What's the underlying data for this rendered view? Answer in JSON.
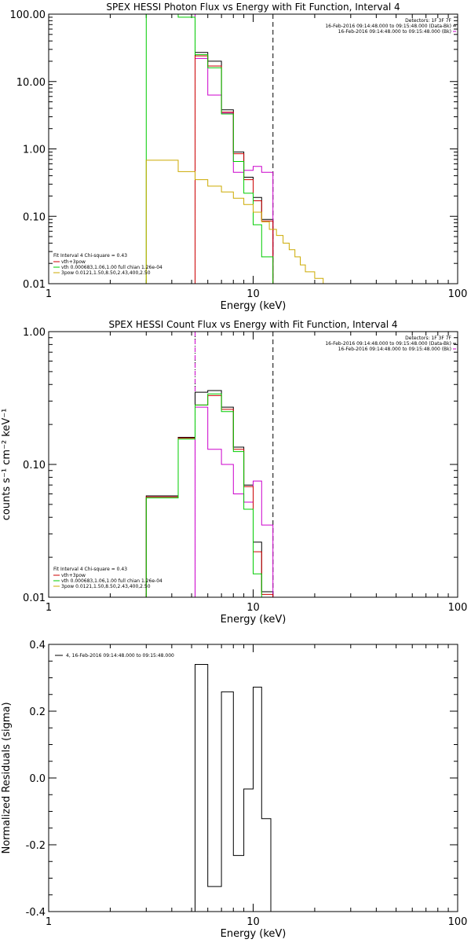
{
  "chart_data": [
    {
      "type": "line",
      "id": "photon",
      "title": "SPEX HESSI Photon Flux vs Energy with Fit Function, Interval 4",
      "xlabel": "Energy (keV)",
      "ylabel": "",
      "xscale": "log",
      "yscale": "log",
      "xlim": [
        1,
        100
      ],
      "ylim": [
        0.01,
        100
      ],
      "xticks": [
        {
          "v": 1,
          "label": "1"
        },
        {
          "v": 10,
          "label": "10"
        },
        {
          "v": 100,
          "label": "100"
        }
      ],
      "yticks": [
        {
          "v": 0.01,
          "label": "0.01"
        },
        {
          "v": 0.1,
          "label": "0.10"
        },
        {
          "v": 1,
          "label": "1.00"
        },
        {
          "v": 10,
          "label": "10.00"
        },
        {
          "v": 100,
          "label": "100.00"
        }
      ],
      "info_lines": [
        "Detectors: 1F 3F 7F",
        "16-Feb-2016 09:14:48.000 to 09:15:48.000 (Data-Bk)",
        "16-Feb-2016 09:14:48.000 to 09:15:48.000 (Bk)"
      ],
      "vlines": [
        {
          "x": 5.2,
          "style": "dotted",
          "color": "#000000"
        },
        {
          "x": 5.2,
          "style": "dashed",
          "color": "#cc00cc"
        },
        {
          "x": 12.5,
          "style": "dashed",
          "color": "#000000"
        }
      ],
      "legend": {
        "placement": "bottom-left",
        "header": "Fit Interval 4   Chi-square = 0.43",
        "entries": [
          {
            "label": "vth+3pow",
            "color": "#cc0000"
          },
          {
            "label": "vth 0.000683,1.06,1.00  full chian 1.26e-04",
            "color": "#00cc00"
          },
          {
            "label": "3pow 0.0121,1.50,8.50,2.43,400,2.50",
            "color": "#ccaa00"
          }
        ]
      },
      "series": [
        {
          "name": "Data-Bk",
          "color": "#000000",
          "edges": [
            5.2,
            6,
            7,
            8,
            9,
            10,
            11,
            12.5
          ],
          "values": [
            27,
            20,
            3.8,
            0.9,
            0.38,
            0.19,
            0.09
          ]
        },
        {
          "name": "Bk",
          "color": "#cc00cc",
          "edges": [
            5.2,
            6,
            7,
            8,
            9,
            10,
            11,
            12.5
          ],
          "values": [
            22,
            6.3,
            3.4,
            0.45,
            0.48,
            0.55,
            0.45
          ]
        },
        {
          "name": "vth+3pow",
          "color": "#cc0000",
          "edges": [
            5.2,
            6,
            7,
            8,
            9,
            10,
            11,
            12.5
          ],
          "values": [
            24,
            17,
            3.5,
            0.85,
            0.35,
            0.17,
            0.085
          ]
        },
        {
          "name": "vth",
          "color": "#00cc00",
          "edges": [
            3,
            4.3,
            5.2,
            6,
            7,
            8,
            9,
            10,
            11,
            12.5
          ],
          "values": [
            100,
            90,
            25,
            16,
            3.3,
            0.65,
            0.22,
            0.075,
            0.025
          ]
        },
        {
          "name": "3pow",
          "color": "#ccaa00",
          "edges": [
            3,
            4.3,
            5.2,
            6,
            7,
            8,
            9,
            10,
            11,
            12,
            13,
            14,
            15,
            16,
            17,
            18,
            20,
            22,
            25
          ],
          "values": [
            0.68,
            0.46,
            0.35,
            0.28,
            0.23,
            0.185,
            0.15,
            0.115,
            0.083,
            0.064,
            0.052,
            0.04,
            0.032,
            0.025,
            0.019,
            0.015,
            0.012,
            0.01
          ]
        }
      ]
    },
    {
      "type": "line",
      "id": "count",
      "title": "SPEX HESSI Count Flux vs Energy with Fit Function, Interval 4",
      "xlabel": "Energy (keV)",
      "ylabel": "counts s⁻¹ cm⁻² keV⁻¹",
      "xscale": "log",
      "yscale": "log",
      "xlim": [
        1,
        100
      ],
      "ylim": [
        0.01,
        1
      ],
      "xticks": [
        {
          "v": 1,
          "label": "1"
        },
        {
          "v": 10,
          "label": "10"
        },
        {
          "v": 100,
          "label": "100"
        }
      ],
      "yticks": [
        {
          "v": 0.01,
          "label": "0.01"
        },
        {
          "v": 0.1,
          "label": "0.10"
        },
        {
          "v": 1,
          "label": "1.00"
        }
      ],
      "info_lines": [
        "Detectors: 1F 3F 7F",
        "16-Feb-2016 09:14:48.000 to 09:15:48.000 (Data-Bk)",
        "16-Feb-2016 09:14:48.000 to 09:15:48.000 (Bk)"
      ],
      "vlines": [
        {
          "x": 5.2,
          "style": "dotted",
          "color": "#000000"
        },
        {
          "x": 5.2,
          "style": "dashed",
          "color": "#cc00cc"
        },
        {
          "x": 12.5,
          "style": "dashed",
          "color": "#000000"
        }
      ],
      "legend": {
        "placement": "bottom-left",
        "header": "Fit Interval 4   Chi-square = 0.43",
        "entries": [
          {
            "label": "vth+3pow",
            "color": "#cc0000"
          },
          {
            "label": "vth 0.000683,1.06,1.00  full chian 1.26e-04",
            "color": "#00cc00"
          },
          {
            "label": "3pow 0.0121,1.50,8.50,2.43,400,2.50",
            "color": "#ccaa00"
          }
        ]
      },
      "series": [
        {
          "name": "Data-Bk",
          "color": "#000000",
          "edges": [
            3,
            4.3,
            5.2,
            6,
            7,
            8,
            9,
            10,
            11,
            12.5
          ],
          "values": [
            0.058,
            0.16,
            0.35,
            0.36,
            0.27,
            0.135,
            0.07,
            0.026,
            0.011
          ]
        },
        {
          "name": "Bk",
          "color": "#cc00cc",
          "edges": [
            5.2,
            6,
            7,
            8,
            9,
            10,
            11,
            12.5
          ],
          "values": [
            0.27,
            0.13,
            0.1,
            0.06,
            0.052,
            0.075,
            0.035
          ]
        },
        {
          "name": "vth+3pow",
          "color": "#cc0000",
          "edges": [
            3,
            4.3,
            5.2,
            6,
            7,
            8,
            9,
            10,
            11,
            12.5
          ],
          "values": [
            0.057,
            0.158,
            0.28,
            0.33,
            0.26,
            0.13,
            0.068,
            0.022,
            0.0105
          ]
        },
        {
          "name": "vth",
          "color": "#00cc00",
          "edges": [
            3,
            4.3,
            5.2,
            6,
            7,
            8,
            9,
            10,
            11
          ],
          "values": [
            0.056,
            0.155,
            0.28,
            0.34,
            0.25,
            0.125,
            0.046,
            0.015
          ]
        }
      ]
    },
    {
      "type": "line",
      "id": "resid",
      "title": "",
      "xlabel": "Energy (keV)",
      "ylabel": "Normalized Residuals (sigma)",
      "xscale": "log",
      "yscale": "linear",
      "xlim": [
        1,
        100
      ],
      "ylim": [
        -0.4,
        0.4
      ],
      "xticks": [
        {
          "v": 1,
          "label": "1"
        },
        {
          "v": 10,
          "label": "10"
        },
        {
          "v": 100,
          "label": "100"
        }
      ],
      "yticks": [
        {
          "v": -0.4,
          "label": "-0.4"
        },
        {
          "v": -0.2,
          "label": "-0.2"
        },
        {
          "v": 0,
          "label": "0.0"
        },
        {
          "v": 0.2,
          "label": "0.2"
        },
        {
          "v": 0.4,
          "label": "0.4"
        }
      ],
      "legend": {
        "placement": "top-left",
        "entries": [
          {
            "label": "4, 16-Feb-2016 09:14:48.000 to 09:15:48.000",
            "color": "#000000"
          }
        ]
      },
      "series": [
        {
          "name": "4",
          "color": "#000000",
          "edges": [
            5.2,
            6,
            7,
            8,
            9,
            10,
            11,
            12.2
          ],
          "values": [
            0.34,
            -0.325,
            0.258,
            -0.232,
            -0.033,
            0.272,
            -0.122
          ]
        }
      ]
    }
  ]
}
